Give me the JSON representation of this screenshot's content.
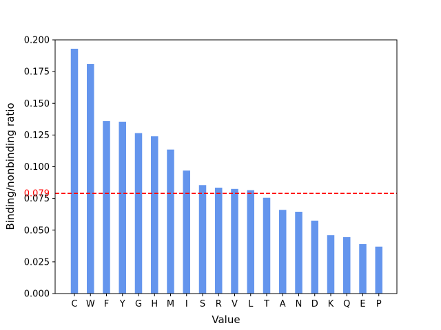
{
  "chart_data": {
    "type": "bar",
    "xlabel": "Value",
    "ylabel": "Binding/nonbinding ratio",
    "categories": [
      "C",
      "W",
      "F",
      "Y",
      "G",
      "H",
      "M",
      "I",
      "S",
      "R",
      "V",
      "L",
      "T",
      "A",
      "N",
      "D",
      "K",
      "Q",
      "E",
      "P"
    ],
    "values": [
      0.193,
      0.181,
      0.136,
      0.1355,
      0.1265,
      0.124,
      0.1135,
      0.097,
      0.0855,
      0.0835,
      0.0825,
      0.0815,
      0.0755,
      0.066,
      0.0645,
      0.0575,
      0.046,
      0.0445,
      0.039,
      0.037
    ],
    "ylim": [
      0,
      0.2
    ],
    "yticks": [
      "0.000",
      "0.025",
      "0.050",
      "0.075",
      "0.100",
      "0.125",
      "0.150",
      "0.175",
      "0.200"
    ],
    "bar_color": "#6495ed",
    "reference_line": {
      "value": 0.079,
      "label": "0.079",
      "color": "#ff0000",
      "style": "dashed"
    },
    "grid": false,
    "legend": "none"
  }
}
